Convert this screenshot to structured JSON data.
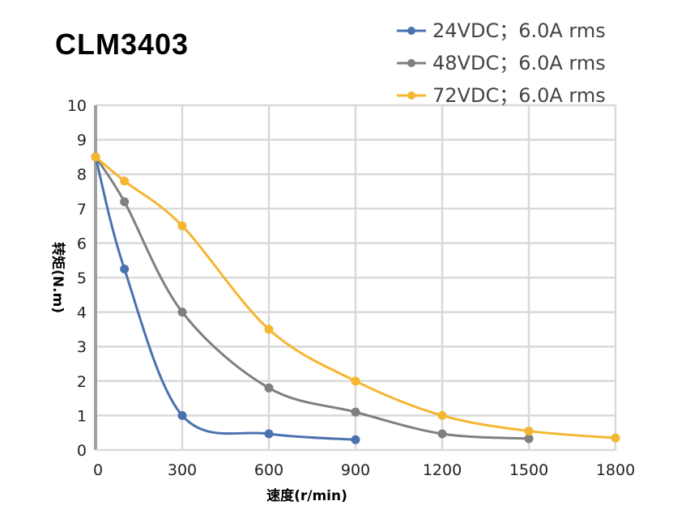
{
  "chart_data": {
    "type": "line",
    "title": "CLM3403",
    "xlabel": "速度(r/min)",
    "ylabel": "转矩(N.m)",
    "xlim": [
      0,
      1800
    ],
    "ylim": [
      0,
      10
    ],
    "xticks": [
      0,
      300,
      600,
      900,
      1200,
      1500,
      1800
    ],
    "yticks": [
      0,
      1,
      2,
      3,
      4,
      5,
      6,
      7,
      8,
      9,
      10
    ],
    "grid": true,
    "legend_position": "top-right",
    "series": [
      {
        "name": "24VDC；6.0A rms",
        "color": "#4a72b0",
        "x": [
          0,
          100,
          300,
          600,
          900
        ],
        "y": [
          8.5,
          5.25,
          1.0,
          0.47,
          0.3
        ]
      },
      {
        "name": "48VDC；6.0A rms",
        "color": "#7f7f7f",
        "x": [
          0,
          100,
          300,
          600,
          900,
          1200,
          1500
        ],
        "y": [
          8.5,
          7.2,
          4.0,
          1.8,
          1.1,
          0.47,
          0.33
        ]
      },
      {
        "name": "72VDC；6.0A rms",
        "color": "#f5b630",
        "x": [
          0,
          100,
          300,
          600,
          900,
          1200,
          1500,
          1800
        ],
        "y": [
          8.5,
          7.8,
          6.5,
          3.5,
          2.0,
          1.0,
          0.55,
          0.35
        ]
      }
    ]
  }
}
